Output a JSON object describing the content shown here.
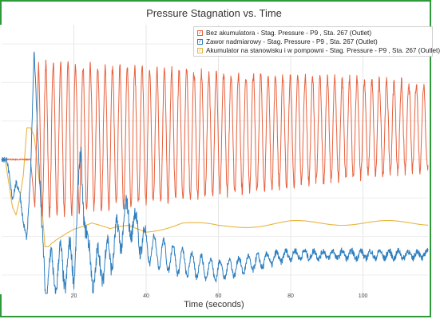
{
  "chart_data": {
    "type": "line",
    "title": "Pressure Stagnation vs. Time",
    "xlabel": "Time (seconds)",
    "ylabel": "",
    "xlim": [
      0,
      118
    ],
    "ylim": [
      0,
      68
    ],
    "xticks": [
      20,
      40,
      60,
      80,
      100
    ],
    "grid": true,
    "legend_position": "top-right",
    "series": [
      {
        "name": "Bez akumulatora - Stag. Pressure - P9 , Sta. 267 (Outlet)",
        "color": "#e8603c",
        "x": [
          0,
          8,
          9,
          12,
          14,
          16,
          20,
          30,
          40,
          60,
          80,
          100,
          118
        ],
        "y": [
          34,
          34,
          20,
          20,
          48,
          24,
          44,
          22,
          38,
          42,
          46,
          44,
          45
        ],
        "oscillation": {
          "period_s": 2.05,
          "min_y": [
            20,
            23,
            26,
            28,
            30,
            32
          ],
          "max_y": [
            58,
            57,
            55,
            54,
            54,
            53
          ]
        }
      },
      {
        "name": "Zawor nadmiarowy - Stag. Pressure - P9 , Sta. 267 (Outlet)",
        "color": "#2f7fbf",
        "x": [
          0,
          1.5,
          3,
          4,
          5,
          6,
          7,
          8,
          9,
          10,
          11,
          12,
          15,
          20,
          22,
          24,
          26,
          30,
          35,
          40,
          50,
          60,
          80,
          100,
          118
        ],
        "y": [
          34,
          34,
          24,
          28,
          26,
          18,
          14,
          30,
          62,
          40,
          20,
          4,
          6,
          8,
          34,
          8,
          6,
          10,
          20,
          12,
          8,
          6,
          10,
          10,
          10
        ],
        "oscillation": {
          "period_s": 2.6,
          "amplitude": [
            5,
            3,
            2,
            1
          ]
        }
      },
      {
        "name": "Akumulator na stanowisku i w pompowni - Stag. Pressure - P9 , Sta. 267 (Outlet)",
        "color": "#e8b540",
        "x": [
          0,
          1,
          2,
          3,
          4,
          5,
          6,
          7,
          8,
          9,
          10,
          11,
          12,
          13,
          15,
          18,
          20,
          25,
          30,
          35,
          40,
          50,
          60,
          80,
          100,
          118
        ],
        "y": [
          34,
          34,
          28,
          22,
          20,
          24,
          30,
          42,
          42,
          40,
          32,
          24,
          12,
          12,
          14,
          16,
          17,
          18,
          16,
          17,
          16,
          18,
          17,
          18,
          18,
          18
        ]
      }
    ]
  }
}
